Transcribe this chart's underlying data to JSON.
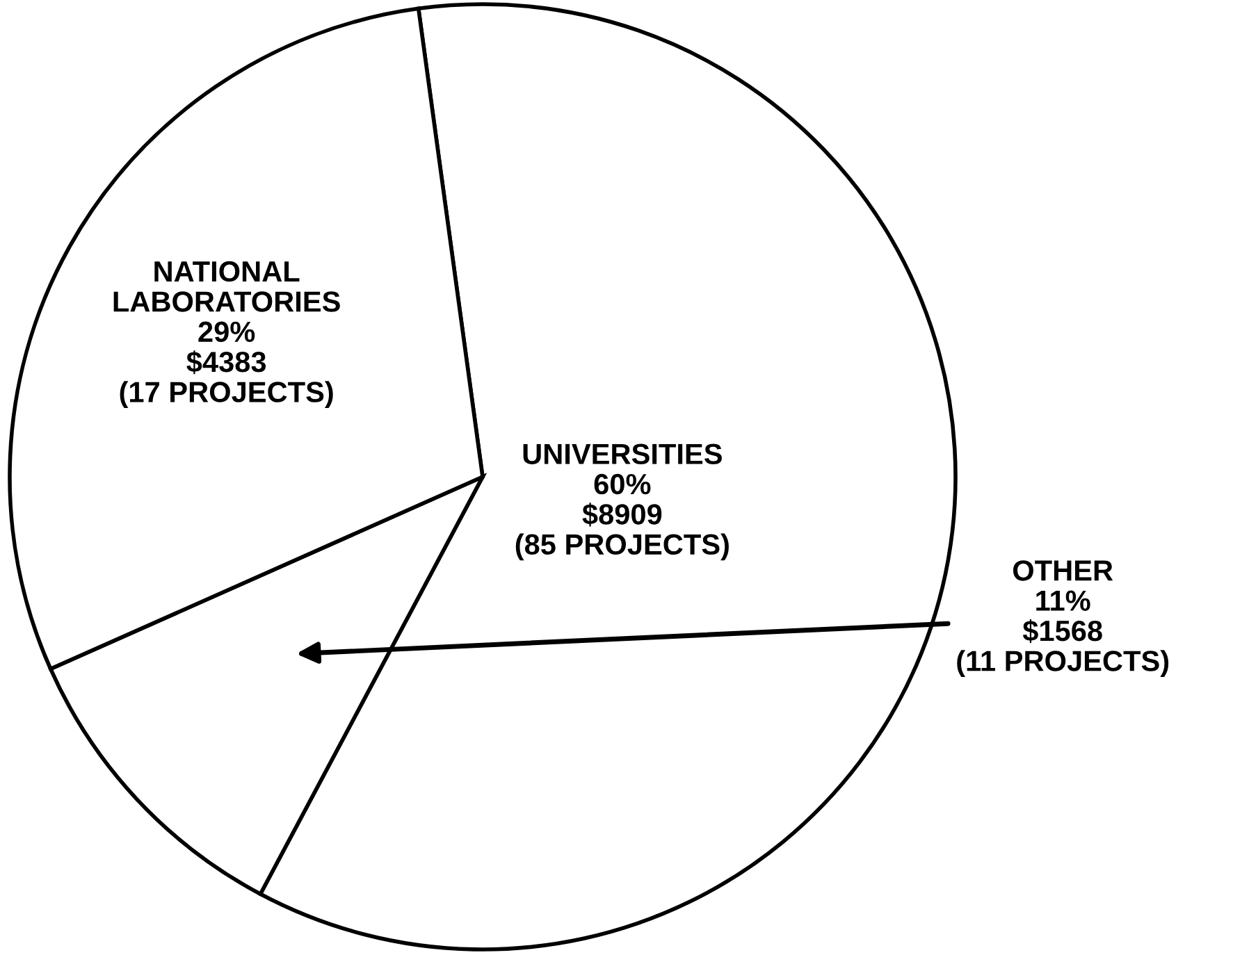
{
  "chart_data": {
    "type": "pie",
    "categories": [
      "UNIVERSITIES",
      "OTHER",
      "NATIONAL\nLABORATORIES"
    ],
    "values": [
      8909,
      1568,
      4383
    ],
    "colors": [
      "#ffffff",
      "#ffffff",
      "#ffffff"
    ],
    "value_labels": [
      "60%\n$8909\n(85 PROJECTS)",
      "11%\n$1568\n(11 PROJECTS)",
      "29%\n$4383\n(17 PROJECTS)"
    ],
    "legend": false
  }
}
